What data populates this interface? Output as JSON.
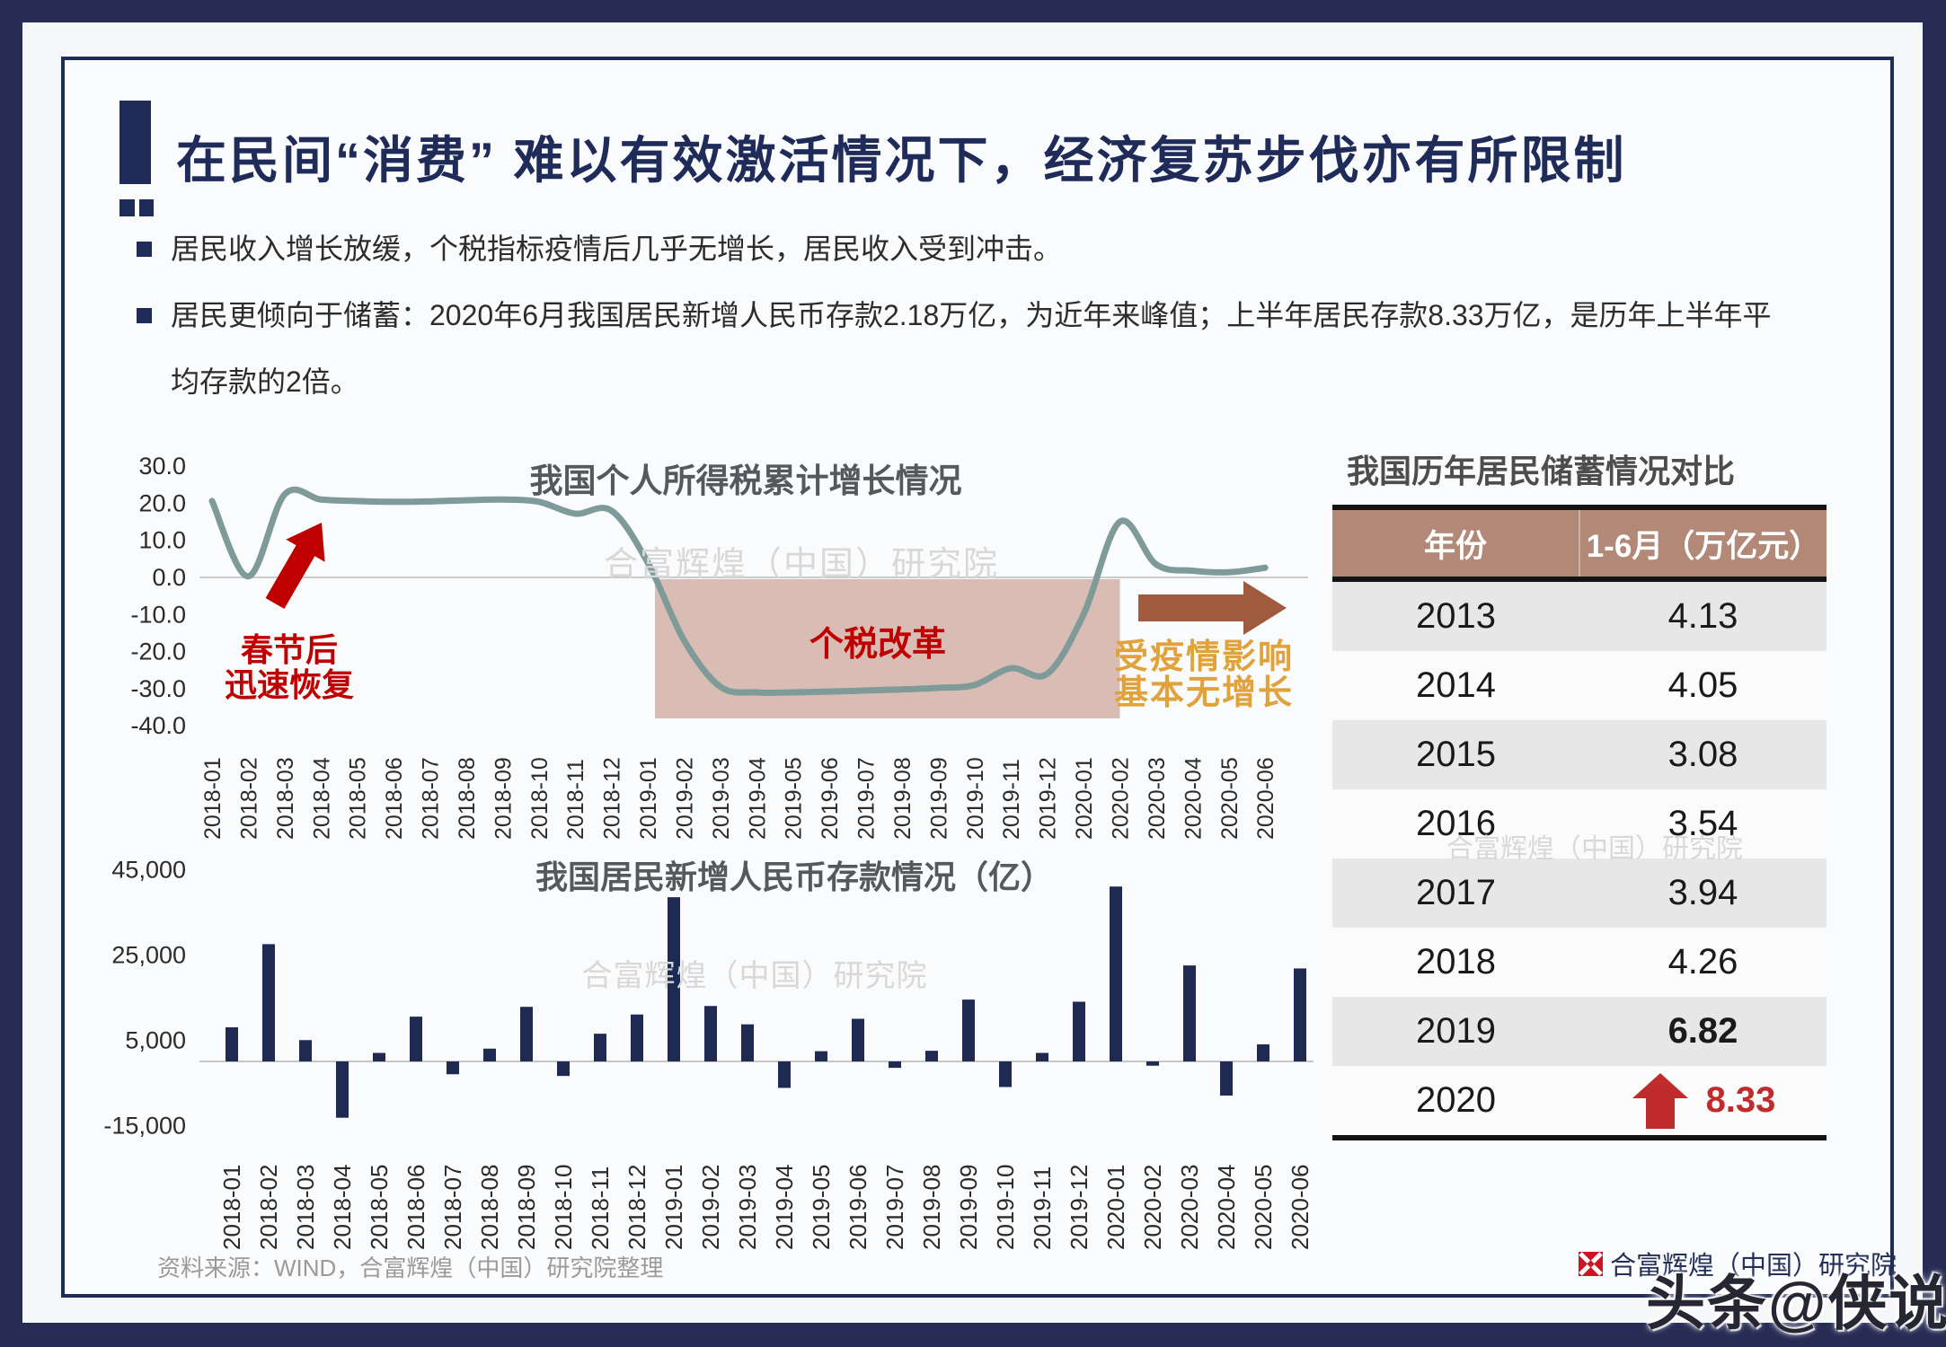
{
  "colors": {
    "frame_navy": "#272c55",
    "card_border": "#1f2d56",
    "title_navy": "#1f2b59",
    "text_dark": "#2c2c2c",
    "chart_title_gray": "#55585c",
    "line_color": "#7e9a99",
    "bar_color": "#1e2a52",
    "shade_color": "#d9bdb4",
    "red_accent": "#c00000",
    "brown_arrow": "#a05a3e",
    "orange_accent": "#e2a23b",
    "watermark_gray": "#d8d8d8",
    "table_header_bg": "#b28877",
    "table_row_alt": "#e7e7e7",
    "table_red": "#c02c2c",
    "source_gray": "#9a9a9a"
  },
  "header": {
    "title": "在民间“消费” 难以有效激活情况下，经济复苏步伐亦有所限制"
  },
  "bullets": [
    {
      "text": "居民收入增长放缓，个税指标疫情后几乎无增长，居民收入受到冲击。"
    },
    {
      "text": "居民更倾向于储蓄：2020年6月我国居民新增人民币存款2.18万亿，为近年来峰值；上半年居民存款8.33万亿，是历年上半年平均存款的2倍。"
    }
  ],
  "chart_data": [
    {
      "type": "line",
      "title": "我国个人所得税累计增长情况",
      "categories": [
        "2018-01",
        "2018-02",
        "2018-03",
        "2018-04",
        "2018-05",
        "2018-06",
        "2018-07",
        "2018-08",
        "2018-09",
        "2018-10",
        "2018-11",
        "2018-12",
        "2019-01",
        "2019-02",
        "2019-03",
        "2019-04",
        "2019-05",
        "2019-06",
        "2019-07",
        "2019-08",
        "2019-09",
        "2019-10",
        "2019-11",
        "2019-12",
        "2020-01",
        "2020-02",
        "2020-03",
        "2020-04",
        "2020-05",
        "2020-06"
      ],
      "values": [
        20.6,
        0.3,
        22.4,
        21.0,
        20.6,
        20.4,
        20.5,
        20.8,
        21.0,
        20.4,
        17.2,
        18.0,
        4.0,
        -17.0,
        -29.5,
        -31.0,
        -31.0,
        -30.8,
        -30.5,
        -30.2,
        -29.8,
        -29.0,
        -24.5,
        -26.0,
        -10.0,
        15.0,
        3.5,
        1.8,
        1.4,
        2.6
      ],
      "ylim": [
        -40,
        30
      ],
      "yticks": [
        30,
        20,
        10,
        0,
        -10,
        -20,
        -30,
        -40
      ],
      "grid": false,
      "legend": "none",
      "watermark": "合富辉煌（中国）研究院",
      "shaded_region": {
        "from": "2019-01",
        "to": "2020-02",
        "label": "个税改革"
      },
      "annotations": [
        {
          "id": "spring",
          "line1": "春节后",
          "line2": "迅速恢复"
        },
        {
          "id": "covid",
          "line1": "受疫情影响",
          "line2": "基本无增长"
        }
      ]
    },
    {
      "type": "bar",
      "title": "我国居民新增人民币存款情况（亿）",
      "categories": [
        "2018-01",
        "2018-02",
        "2018-03",
        "2018-04",
        "2018-05",
        "2018-06",
        "2018-07",
        "2018-08",
        "2018-09",
        "2018-10",
        "2018-11",
        "2018-12",
        "2019-01",
        "2019-02",
        "2019-03",
        "2019-04",
        "2019-05",
        "2019-06",
        "2019-07",
        "2019-08",
        "2019-09",
        "2019-10",
        "2019-11",
        "2019-12",
        "2020-01",
        "2020-02",
        "2020-03",
        "2020-04",
        "2020-05",
        "2020-06"
      ],
      "values": [
        8000,
        27500,
        5000,
        -13200,
        2000,
        10500,
        -3000,
        3000,
        12800,
        -3400,
        6500,
        11000,
        38500,
        13000,
        8700,
        -6200,
        2400,
        10000,
        -1500,
        2500,
        14500,
        -6000,
        2000,
        14000,
        41000,
        -1000,
        22500,
        -8000,
        4000,
        21800
      ],
      "ylim": [
        -15000,
        45000
      ],
      "yticks": [
        45000,
        25000,
        5000,
        -15000
      ],
      "grid": false,
      "legend": "none",
      "watermark": "合富辉煌（中国）研究院"
    },
    {
      "type": "table",
      "title": "我国历年居民储蓄情况对比",
      "columns": [
        "年份",
        "1-6月（万亿元）"
      ],
      "rows": [
        {
          "year": "2013",
          "value": "4.13"
        },
        {
          "year": "2014",
          "value": "4.05"
        },
        {
          "year": "2015",
          "value": "3.08"
        },
        {
          "year": "2016",
          "value": "3.54"
        },
        {
          "year": "2017",
          "value": "3.94"
        },
        {
          "year": "2018",
          "value": "4.26"
        },
        {
          "year": "2019",
          "value": "6.82",
          "bold": true
        },
        {
          "year": "2020",
          "value": "8.33",
          "bold": true,
          "red": true,
          "arrow": "up"
        }
      ],
      "watermark": "合富辉煌（中国）研究院"
    }
  ],
  "footer": {
    "source": "资料来源：WIND，合富辉煌（中国）研究院整理",
    "logo_text": "合富辉煌（中国）研究院",
    "watermark": "头条@侠说"
  }
}
